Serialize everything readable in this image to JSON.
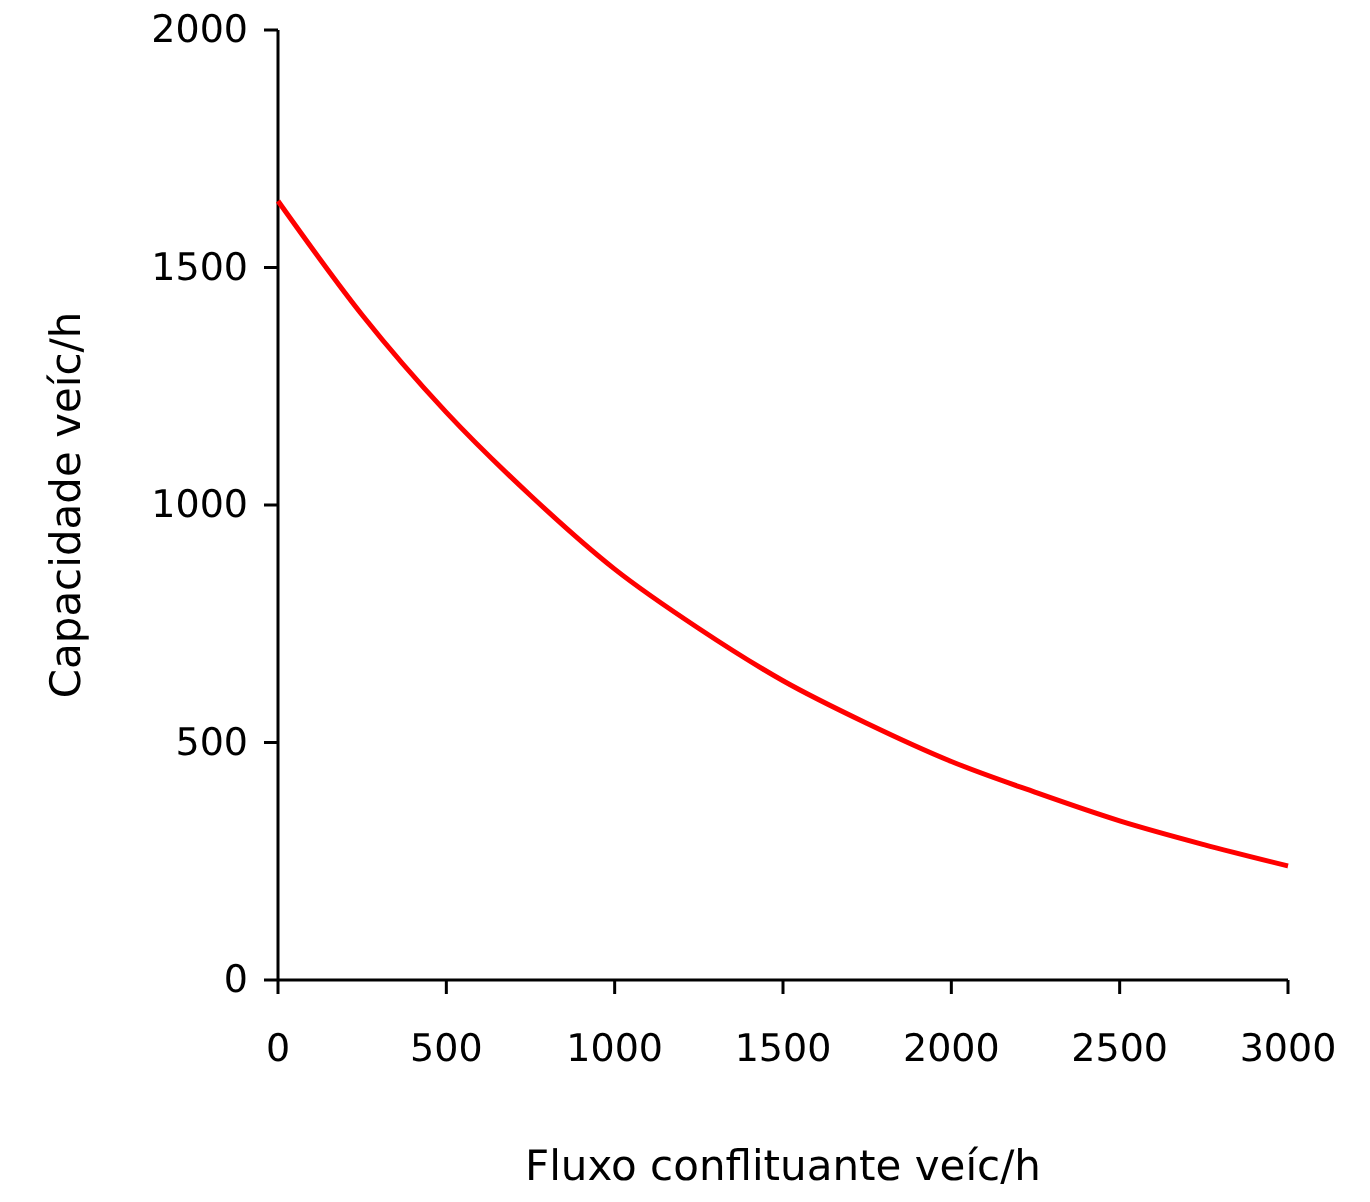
{
  "chart_data": {
    "type": "line",
    "xlabel": "Fluxo conflituante veíc/h",
    "ylabel": "Capacidade veíc/h",
    "x": [
      0,
      250,
      500,
      750,
      1000,
      1250,
      1500,
      1750,
      2000,
      2250,
      2500,
      2750,
      3000
    ],
    "series": [
      {
        "color": "#ff0000",
        "values": [
          1640,
          1400,
          1195,
          1020,
          865,
          740,
          630,
          540,
          460,
          395,
          335,
          285,
          240
        ]
      }
    ],
    "xlim": [
      0,
      3000
    ],
    "xticks": [
      0,
      500,
      1000,
      1500,
      2000,
      2500,
      3000
    ],
    "ylim": [
      0,
      2000
    ],
    "yticks": [
      0,
      500,
      1000,
      1500,
      2000
    ],
    "grid": false,
    "marker": "none",
    "line_style": "solid"
  }
}
